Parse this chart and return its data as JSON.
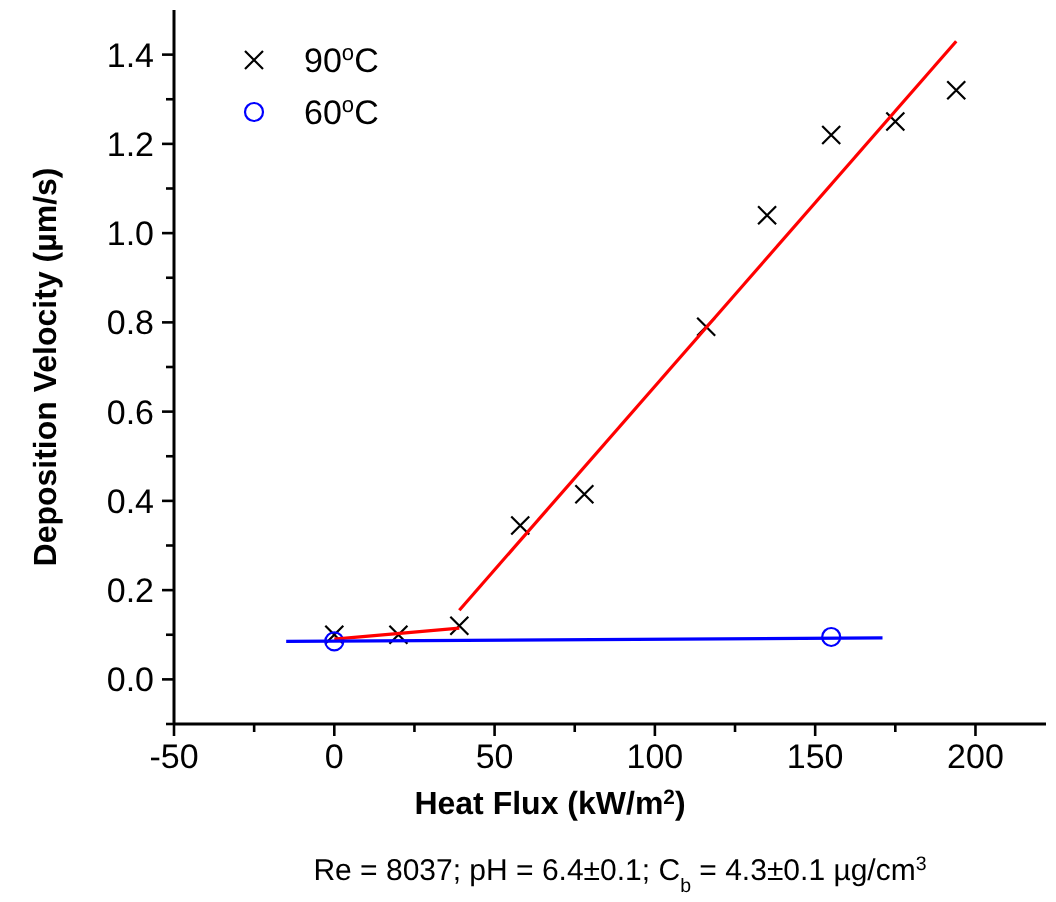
{
  "chart_data": {
    "type": "scatter",
    "xlabel": "Heat Flux (kW/m$^{2}$)",
    "ylabel": "Deposition Velocity (µm/s)",
    "annotations": [
      "Re = 8037; pH = 6.4±0.1; C$_{b}$ = 4.3±0.1 µg/cm$^{3}$"
    ],
    "xlim": [
      -50,
      222
    ],
    "ylim": [
      -0.1,
      1.5
    ],
    "xticks": [
      -50,
      {
        "value": -25,
        "label": null
      },
      0,
      {
        "value": 25,
        "label": null
      },
      50,
      {
        "value": 75,
        "label": null
      },
      100,
      {
        "value": 125,
        "label": null
      },
      150,
      {
        "value": 175,
        "label": null
      },
      200
    ],
    "yticks": [
      {
        "value": -0.1,
        "label": null
      },
      {
        "value": 0,
        "label": "0.0"
      },
      {
        "value": 0.1,
        "label": null
      },
      0.2,
      {
        "value": 0.3,
        "label": null
      },
      0.4,
      {
        "value": 0.5,
        "label": null
      },
      0.6,
      {
        "value": 0.7,
        "label": null
      },
      0.8,
      {
        "value": 0.9,
        "label": null
      },
      {
        "value": 1,
        "label": "1.0"
      },
      {
        "value": 1.1,
        "label": null
      },
      1.2,
      {
        "value": 1.3,
        "label": null
      },
      1.4
    ],
    "grid": false,
    "legend": "top left",
    "series": [
      {
        "name": "90$^{o}$C",
        "marker": "cross",
        "color": "#000000",
        "x": [
          0,
          20,
          39,
          58,
          78,
          116,
          135,
          155,
          175,
          194
        ],
        "values": [
          0.1,
          0.1,
          0.12,
          0.345,
          0.415,
          0.79,
          1.04,
          1.22,
          1.25,
          1.32
        ]
      },
      {
        "name": "60$^{o}$C",
        "marker": "circle",
        "color": "#0000ff",
        "x": [
          0,
          155
        ],
        "values": [
          0.085,
          0.095
        ]
      },
      {
        "type": "line",
        "marker": "none",
        "color": "#ff0000",
        "x": [
          0,
          39
        ],
        "values": [
          0.09,
          0.115
        ]
      },
      {
        "type": "line",
        "marker": "none",
        "color": "#ff0000",
        "x": [
          39,
          194
        ],
        "values": [
          0.155,
          1.43
        ]
      },
      {
        "type": "line",
        "marker": "none",
        "color": "#0000ff",
        "x": [
          -15,
          171
        ],
        "values": [
          0.085,
          0.093
        ]
      }
    ]
  }
}
